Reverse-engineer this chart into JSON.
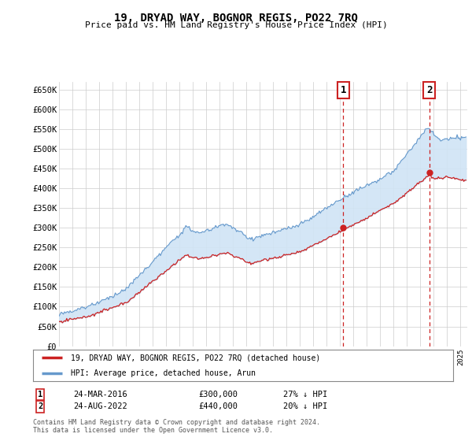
{
  "title": "19, DRYAD WAY, BOGNOR REGIS, PO22 7RQ",
  "subtitle": "Price paid vs. HM Land Registry's House Price Index (HPI)",
  "ylabel_ticks": [
    "£0",
    "£50K",
    "£100K",
    "£150K",
    "£200K",
    "£250K",
    "£300K",
    "£350K",
    "£400K",
    "£450K",
    "£500K",
    "£550K",
    "£600K",
    "£650K"
  ],
  "ytick_values": [
    0,
    50000,
    100000,
    150000,
    200000,
    250000,
    300000,
    350000,
    400000,
    450000,
    500000,
    550000,
    600000,
    650000
  ],
  "ylim": [
    0,
    670000
  ],
  "xlim_start": 1995.0,
  "xlim_end": 2025.5,
  "hpi_color": "#6699cc",
  "hpi_fill_color": "#d0e4f5",
  "price_color": "#cc2222",
  "marker1_year": 2016.23,
  "marker1_price": 300000,
  "marker2_year": 2022.65,
  "marker2_price": 440000,
  "marker1_label": "24-MAR-2016",
  "marker1_amount": "£300,000",
  "marker1_hpi": "27% ↓ HPI",
  "marker2_label": "24-AUG-2022",
  "marker2_amount": "£440,000",
  "marker2_hpi": "20% ↓ HPI",
  "legend_line1": "19, DRYAD WAY, BOGNOR REGIS, PO22 7RQ (detached house)",
  "legend_line2": "HPI: Average price, detached house, Arun",
  "footnote": "Contains HM Land Registry data © Crown copyright and database right 2024.\nThis data is licensed under the Open Government Licence v3.0.",
  "background_color": "#ffffff",
  "grid_color": "#cccccc"
}
